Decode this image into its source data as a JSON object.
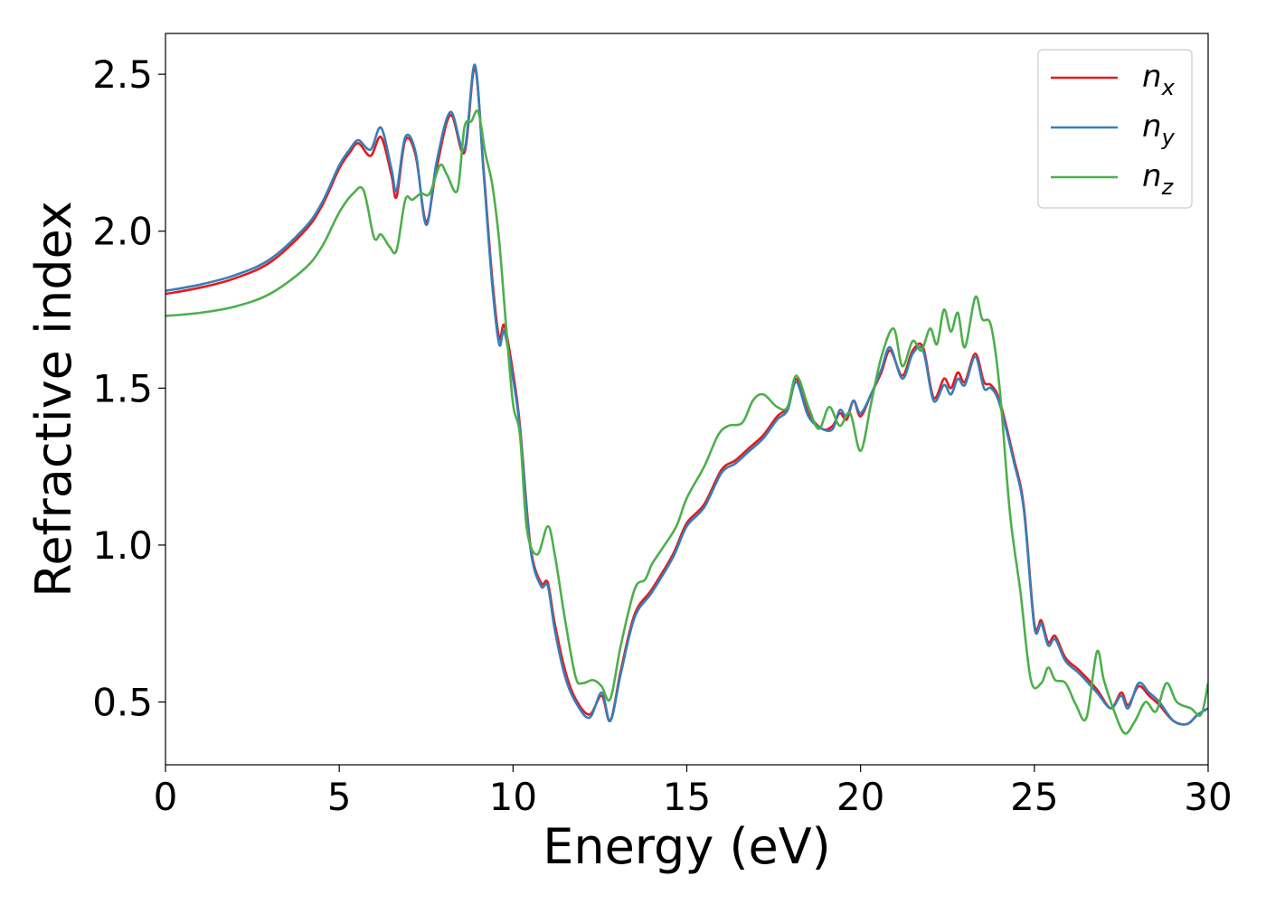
{
  "chart_data": {
    "type": "line",
    "title": "",
    "xlabel": "Energy (eV)",
    "ylabel": "Refractive index",
    "xlim": [
      0,
      30
    ],
    "ylim": [
      0.3,
      2.63
    ],
    "xticks": [
      0,
      5,
      10,
      15,
      20,
      25,
      30
    ],
    "xtick_labels": [
      "0",
      "5",
      "10",
      "15",
      "20",
      "25",
      "30"
    ],
    "yticks": [
      0.5,
      1.0,
      1.5,
      2.0,
      2.5
    ],
    "ytick_labels": [
      "0.5",
      "1.0",
      "1.5",
      "2.0",
      "2.5"
    ],
    "grid": false,
    "legend_position": "top-right",
    "series": [
      {
        "name": "n_x",
        "label_base": "n",
        "label_sub": "x",
        "color": "#e41a1c",
        "x": [
          0,
          1,
          2,
          3,
          4,
          4.5,
          5,
          5.3,
          5.55,
          5.9,
          6.2,
          6.5,
          6.65,
          6.9,
          7.2,
          7.5,
          7.8,
          8.2,
          8.6,
          8.9,
          9.15,
          9.4,
          9.6,
          9.75,
          10.0,
          10.2,
          10.5,
          10.8,
          11.0,
          11.2,
          11.5,
          11.8,
          12.2,
          12.55,
          12.8,
          13.1,
          13.5,
          14.0,
          14.6,
          15.0,
          15.5,
          16.0,
          16.4,
          16.8,
          17.2,
          17.6,
          17.9,
          18.15,
          18.5,
          18.9,
          19.2,
          19.4,
          19.6,
          19.8,
          20.0,
          20.3,
          20.6,
          20.85,
          21.2,
          21.5,
          21.8,
          22.1,
          22.4,
          22.6,
          22.8,
          23.0,
          23.3,
          23.55,
          23.75,
          24.0,
          24.4,
          24.7,
          25.0,
          25.2,
          25.4,
          25.6,
          25.9,
          26.3,
          26.8,
          27.2,
          27.5,
          27.7,
          28.0,
          28.3,
          28.6,
          29.0,
          29.4,
          29.7,
          30.0
        ],
        "y": [
          1.8,
          1.82,
          1.85,
          1.9,
          2.0,
          2.08,
          2.2,
          2.25,
          2.28,
          2.24,
          2.3,
          2.18,
          2.11,
          2.29,
          2.24,
          2.03,
          2.2,
          2.37,
          2.25,
          2.52,
          2.2,
          1.85,
          1.66,
          1.7,
          1.55,
          1.38,
          1.0,
          0.88,
          0.88,
          0.75,
          0.6,
          0.51,
          0.46,
          0.52,
          0.44,
          0.6,
          0.78,
          0.86,
          0.97,
          1.07,
          1.13,
          1.24,
          1.27,
          1.31,
          1.35,
          1.41,
          1.44,
          1.53,
          1.42,
          1.37,
          1.38,
          1.42,
          1.4,
          1.46,
          1.41,
          1.48,
          1.55,
          1.62,
          1.54,
          1.62,
          1.63,
          1.47,
          1.53,
          1.5,
          1.55,
          1.52,
          1.61,
          1.52,
          1.51,
          1.46,
          1.28,
          1.12,
          0.75,
          0.76,
          0.69,
          0.71,
          0.64,
          0.6,
          0.54,
          0.48,
          0.53,
          0.49,
          0.55,
          0.52,
          0.49,
          0.44,
          0.43,
          0.46,
          0.48
        ]
      },
      {
        "name": "n_y",
        "label_base": "n",
        "label_sub": "y",
        "color": "#377eb8",
        "x": [
          0,
          1,
          2,
          3,
          4,
          4.5,
          5,
          5.3,
          5.55,
          5.9,
          6.2,
          6.5,
          6.65,
          6.9,
          7.2,
          7.5,
          7.8,
          8.2,
          8.6,
          8.9,
          9.15,
          9.4,
          9.6,
          9.75,
          10.0,
          10.2,
          10.5,
          10.8,
          11.0,
          11.2,
          11.5,
          11.8,
          12.2,
          12.55,
          12.8,
          13.1,
          13.5,
          14.0,
          14.6,
          15.0,
          15.5,
          16.0,
          16.4,
          16.8,
          17.2,
          17.6,
          17.9,
          18.15,
          18.5,
          18.9,
          19.2,
          19.4,
          19.6,
          19.8,
          20.0,
          20.3,
          20.6,
          20.85,
          21.2,
          21.5,
          21.8,
          22.1,
          22.4,
          22.6,
          22.8,
          23.0,
          23.3,
          23.55,
          23.75,
          24.0,
          24.4,
          24.7,
          25.0,
          25.2,
          25.4,
          25.6,
          25.9,
          26.3,
          26.8,
          27.2,
          27.5,
          27.7,
          28.0,
          28.3,
          28.6,
          29.0,
          29.4,
          29.7,
          30.0
        ],
        "y": [
          1.81,
          1.83,
          1.86,
          1.91,
          2.01,
          2.09,
          2.21,
          2.26,
          2.29,
          2.26,
          2.33,
          2.2,
          2.13,
          2.3,
          2.25,
          2.02,
          2.22,
          2.38,
          2.26,
          2.53,
          2.19,
          1.83,
          1.64,
          1.68,
          1.53,
          1.37,
          0.99,
          0.87,
          0.87,
          0.73,
          0.58,
          0.5,
          0.45,
          0.53,
          0.44,
          0.59,
          0.77,
          0.85,
          0.96,
          1.06,
          1.12,
          1.23,
          1.26,
          1.3,
          1.34,
          1.4,
          1.43,
          1.52,
          1.41,
          1.37,
          1.37,
          1.43,
          1.41,
          1.46,
          1.42,
          1.48,
          1.56,
          1.63,
          1.53,
          1.61,
          1.62,
          1.46,
          1.51,
          1.48,
          1.53,
          1.51,
          1.6,
          1.5,
          1.5,
          1.45,
          1.27,
          1.11,
          0.74,
          0.75,
          0.68,
          0.7,
          0.63,
          0.59,
          0.53,
          0.48,
          0.52,
          0.48,
          0.56,
          0.53,
          0.5,
          0.44,
          0.43,
          0.46,
          0.48
        ]
      },
      {
        "name": "n_z",
        "label_base": "n",
        "label_sub": "z",
        "color": "#4daf4a",
        "x": [
          0,
          1,
          2,
          3,
          4,
          4.5,
          5,
          5.4,
          5.7,
          6.0,
          6.2,
          6.45,
          6.65,
          6.9,
          7.1,
          7.35,
          7.6,
          7.9,
          8.1,
          8.4,
          8.6,
          8.8,
          9.0,
          9.2,
          9.4,
          9.6,
          9.8,
          10.0,
          10.2,
          10.4,
          10.7,
          11.0,
          11.2,
          11.5,
          11.8,
          12.0,
          12.3,
          12.55,
          12.8,
          13.1,
          13.5,
          13.8,
          14.0,
          14.3,
          14.7,
          15.0,
          15.5,
          15.9,
          16.2,
          16.6,
          16.9,
          17.2,
          17.6,
          17.9,
          18.15,
          18.5,
          18.8,
          19.1,
          19.4,
          19.7,
          20.0,
          20.3,
          20.6,
          20.95,
          21.2,
          21.5,
          21.75,
          22.0,
          22.2,
          22.4,
          22.6,
          22.8,
          23.0,
          23.3,
          23.5,
          23.75,
          24.0,
          24.3,
          24.6,
          24.9,
          25.2,
          25.4,
          25.6,
          25.9,
          26.2,
          26.5,
          26.8,
          27.0,
          27.3,
          27.6,
          27.9,
          28.2,
          28.5,
          28.8,
          29.1,
          29.5,
          29.8,
          30.0
        ],
        "y": [
          1.73,
          1.74,
          1.76,
          1.8,
          1.88,
          1.95,
          2.06,
          2.12,
          2.13,
          1.98,
          1.99,
          1.95,
          1.94,
          2.1,
          2.1,
          2.12,
          2.12,
          2.21,
          2.18,
          2.13,
          2.33,
          2.35,
          2.38,
          2.25,
          2.15,
          1.97,
          1.7,
          1.45,
          1.35,
          1.05,
          0.97,
          1.06,
          0.97,
          0.76,
          0.58,
          0.56,
          0.57,
          0.55,
          0.51,
          0.68,
          0.86,
          0.89,
          0.94,
          0.99,
          1.06,
          1.15,
          1.25,
          1.35,
          1.38,
          1.39,
          1.46,
          1.48,
          1.44,
          1.44,
          1.54,
          1.44,
          1.37,
          1.44,
          1.38,
          1.42,
          1.3,
          1.45,
          1.6,
          1.69,
          1.57,
          1.65,
          1.62,
          1.69,
          1.64,
          1.75,
          1.68,
          1.74,
          1.63,
          1.79,
          1.72,
          1.7,
          1.5,
          1.1,
          0.85,
          0.57,
          0.56,
          0.61,
          0.57,
          0.56,
          0.49,
          0.45,
          0.66,
          0.57,
          0.47,
          0.4,
          0.44,
          0.5,
          0.47,
          0.56,
          0.5,
          0.48,
          0.46,
          0.56
        ]
      }
    ]
  }
}
